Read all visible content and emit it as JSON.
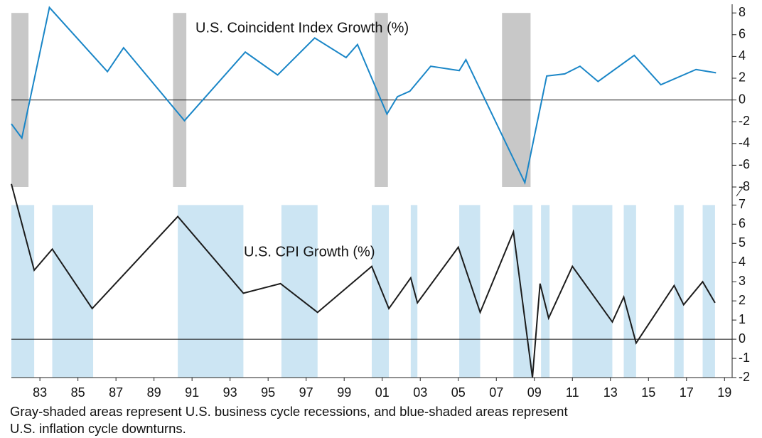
{
  "chart_data": [
    {
      "type": "line",
      "title": "U.S. Coincident Index Growth (%)",
      "x": [
        1981.5,
        1982.05,
        1983.5,
        1986.55,
        1987.4,
        1990.6,
        1993.8,
        1995.5,
        1997.45,
        1999.1,
        1999.7,
        2001.25,
        2001.8,
        2002.45,
        2003.55,
        2005.05,
        2005.4,
        2008.5,
        2009.65,
        2010.6,
        2011.4,
        2012.35,
        2014.25,
        2015.65,
        2017.5,
        2018.55
      ],
      "values": [
        -2.2,
        -3.5,
        8.5,
        2.6,
        4.8,
        -1.9,
        4.4,
        2.3,
        5.7,
        3.9,
        5.1,
        -1.3,
        0.3,
        0.8,
        3.1,
        2.7,
        3.7,
        -7.6,
        2.2,
        2.4,
        3.1,
        1.7,
        4.1,
        1.4,
        2.8,
        2.5
      ],
      "color": "#1a86c7",
      "shaded": [
        [
          1981.5,
          1982.4
        ],
        [
          1990.0,
          1990.7
        ],
        [
          2000.6,
          2001.3
        ],
        [
          2007.3,
          2008.8
        ]
      ],
      "shade_color": "#c8c8c8",
      "xlim": [
        1981.5,
        2019.4
      ],
      "ylim": [
        -8,
        8.6
      ],
      "yticks": [
        8,
        6,
        4,
        2,
        0,
        -2,
        -4,
        -6,
        -8
      ]
    },
    {
      "type": "line",
      "title": "U.S. CPI Growth (%)",
      "x": [
        1981.5,
        1982.7,
        1983.65,
        1985.75,
        1990.25,
        1993.7,
        1995.65,
        1997.6,
        2000.45,
        2001.35,
        2002.5,
        2002.85,
        2005.0,
        2006.15,
        2007.9,
        2008.9,
        2009.3,
        2009.75,
        2011.0,
        2013.1,
        2013.7,
        2014.35,
        2016.35,
        2016.85,
        2017.85,
        2018.5
      ],
      "values": [
        8.1,
        3.6,
        4.7,
        1.6,
        6.4,
        2.4,
        2.9,
        1.4,
        3.8,
        1.6,
        3.2,
        1.9,
        4.8,
        1.4,
        5.6,
        -2.0,
        2.9,
        1.1,
        3.8,
        0.9,
        2.2,
        -0.2,
        2.8,
        1.8,
        3.0,
        1.9
      ],
      "color": "#1c1c1c",
      "shaded": [
        [
          1981.5,
          1982.7
        ],
        [
          1983.65,
          1985.8
        ],
        [
          1990.25,
          1993.7
        ],
        [
          1995.7,
          1997.6
        ],
        [
          2000.45,
          2001.35
        ],
        [
          2002.5,
          2002.85
        ],
        [
          2005.05,
          2006.15
        ],
        [
          2007.9,
          2008.9
        ],
        [
          2009.35,
          2009.8
        ],
        [
          2011.0,
          2013.1
        ],
        [
          2013.7,
          2014.35
        ],
        [
          2016.35,
          2016.85
        ],
        [
          2017.85,
          2018.5
        ]
      ],
      "shade_color": "#cce5f3",
      "xlim": [
        1981.5,
        2019.4
      ],
      "ylim": [
        -2,
        8.2
      ],
      "yticks": [
        7,
        6,
        5,
        4,
        3,
        2,
        1,
        0,
        -1,
        -2
      ],
      "xticks": [
        {
          "value": 1983,
          "label": "83"
        },
        {
          "value": 1985,
          "label": "85"
        },
        {
          "value": 1987,
          "label": "87"
        },
        {
          "value": 1989,
          "label": "89"
        },
        {
          "value": 1991,
          "label": "91"
        },
        {
          "value": 1993,
          "label": "93"
        },
        {
          "value": 1995,
          "label": "95"
        },
        {
          "value": 1997,
          "label": "97"
        },
        {
          "value": 1999,
          "label": "99"
        },
        {
          "value": 2001,
          "label": "01"
        },
        {
          "value": 2003,
          "label": "03"
        },
        {
          "value": 2005,
          "label": "05"
        },
        {
          "value": 2007,
          "label": "07"
        },
        {
          "value": 2009,
          "label": "09"
        },
        {
          "value": 2011,
          "label": "11"
        },
        {
          "value": 2013,
          "label": "13"
        },
        {
          "value": 2015,
          "label": "15"
        },
        {
          "value": 2017,
          "label": "17"
        },
        {
          "value": 2019,
          "label": "19"
        }
      ]
    }
  ],
  "caption": [
    "Gray-shaded areas represent U.S. business cycle recessions, and blue-shaded areas represent",
    "U.S. inflation cycle downturns."
  ]
}
